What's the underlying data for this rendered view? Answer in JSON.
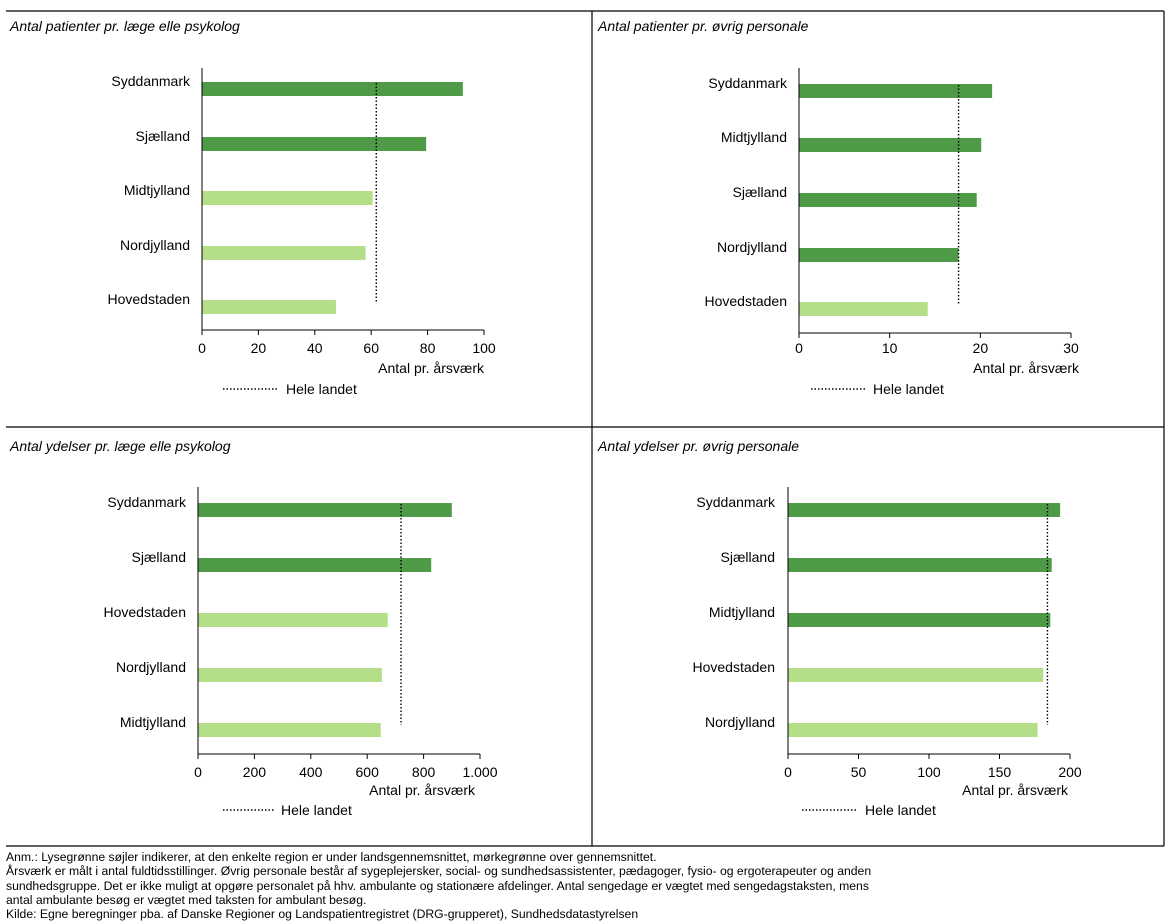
{
  "colors": {
    "above": "#4e9a47",
    "below": "#b4df88",
    "reference": "#000000",
    "frame": "#000000"
  },
  "chart_data": [
    {
      "type": "bar",
      "title": "Antal patienter pr. læge elle psykolog",
      "xlabel": "Antal pr. årsværk",
      "categories": [
        "Syddanmark",
        "Sjælland",
        "Midtjylland",
        "Nordjylland",
        "Hovedstaden"
      ],
      "values": [
        92.5,
        79.5,
        60.5,
        58,
        47.5
      ],
      "above_average": [
        true,
        true,
        false,
        false,
        false
      ],
      "reference": {
        "name": "Hele landet",
        "value": 61.8
      },
      "xlim": [
        0,
        100
      ],
      "xticks": [
        0,
        20,
        40,
        60,
        80,
        100
      ],
      "xtick_labels": [
        "0",
        "20",
        "40",
        "60",
        "80",
        "100"
      ]
    },
    {
      "type": "bar",
      "title": "Antal patienter pr. øvrig personale",
      "xlabel": "Antal pr. årsværk",
      "categories": [
        "Syddanmark",
        "Midtjylland",
        "Sjælland",
        "Nordjylland",
        "Hovedstaden"
      ],
      "values": [
        21.3,
        20.1,
        19.6,
        17.6,
        14.2
      ],
      "above_average": [
        true,
        true,
        true,
        true,
        false
      ],
      "reference": {
        "name": "Hele landet",
        "value": 17.6
      },
      "xlim": [
        0,
        30
      ],
      "xticks": [
        0,
        10,
        20,
        30
      ],
      "xtick_labels": [
        "0",
        "10",
        "20",
        "30"
      ]
    },
    {
      "type": "bar",
      "title": "Antal ydelser pr. læge elle psykolog",
      "xlabel": "Antal pr. årsværk",
      "categories": [
        "Syddanmark",
        "Sjælland",
        "Hovedstaden",
        "Nordjylland",
        "Midtjylland"
      ],
      "values": [
        900,
        827,
        673,
        652,
        648
      ],
      "above_average": [
        true,
        true,
        false,
        false,
        false
      ],
      "reference": {
        "name": "Hele landet",
        "value": 720
      },
      "xlim": [
        0,
        1000
      ],
      "xticks": [
        0,
        200,
        400,
        600,
        800,
        1000
      ],
      "xtick_labels": [
        "0",
        "200",
        "400",
        "600",
        "800",
        "1.000"
      ]
    },
    {
      "type": "bar",
      "title": "Antal ydelser pr. øvrig personale",
      "xlabel": "Antal pr. årsværk",
      "categories": [
        "Syddanmark",
        "Sjælland",
        "Midtjylland",
        "Hovedstaden",
        "Nordjylland"
      ],
      "values": [
        193,
        187,
        186,
        181,
        177
      ],
      "above_average": [
        true,
        true,
        true,
        false,
        false
      ],
      "reference": {
        "name": "Hele landet",
        "value": 184
      },
      "xlim": [
        0,
        200
      ],
      "xticks": [
        0,
        50,
        100,
        150,
        200
      ],
      "xtick_labels": [
        "0",
        "50",
        "100",
        "150",
        "200"
      ]
    }
  ],
  "notes": [
    "Anm.: Lysegrønne søjler indikerer, at den enkelte region er under landsgennemsnittet, mørkegrønne over gennemsnittet.",
    "Årsværk er målt i antal fuldtidsstillinger. Øvrig personale består af sygeplejersker, social- og sundhedsassistenter, pædagoger, fysio- og ergoterapeuter og anden",
    "sundhedsgruppe. Det er ikke muligt at opgøre personalet på hhv. ambulante og stationære afdelinger. Antal sengedage er vægtet med sengedagstaksten, mens",
    "antal ambulante besøg er vægtet med taksten for ambulant besøg.",
    "Kilde: Egne beregninger pba. af Danske Regioner og Landspatientregistret (DRG-grupperet), Sundhedsdatastyrelsen"
  ]
}
